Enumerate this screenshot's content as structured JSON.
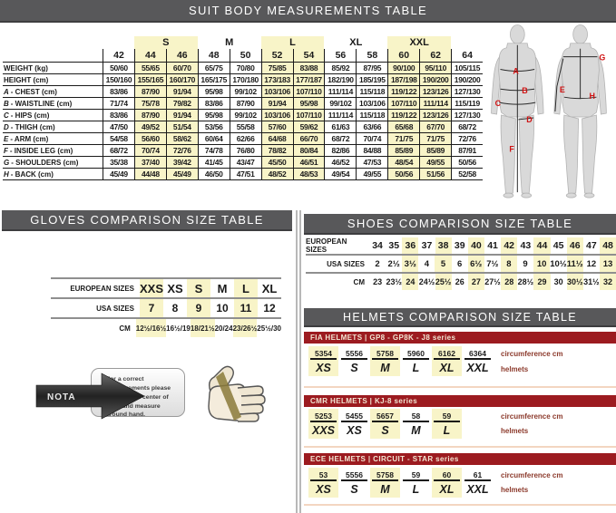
{
  "colors": {
    "header_gray": "#58585a",
    "series_red": "#9c1b20",
    "highlight_yellow": "#f8f4c8",
    "figure_letter_red": "#d01212"
  },
  "suit": {
    "title": "SUIT BODY MEASUREMENTS TABLE",
    "letter_bands": [
      {
        "label": "S",
        "highlight": true
      },
      {
        "label": "M",
        "highlight": false
      },
      {
        "label": "L",
        "highlight": true
      },
      {
        "label": "XL",
        "highlight": false
      },
      {
        "label": "XXL",
        "highlight": true
      }
    ],
    "sizes": [
      "42",
      "44",
      "46",
      "48",
      "50",
      "52",
      "54",
      "56",
      "58",
      "60",
      "62",
      "64"
    ],
    "highlight_cols": [
      1,
      2,
      5,
      6,
      9,
      10
    ],
    "rows": [
      {
        "prefix": "",
        "label": "WEIGHT (kg)",
        "values": [
          "50/60",
          "55/65",
          "60/70",
          "65/75",
          "70/80",
          "75/85",
          "83/88",
          "85/92",
          "87/95",
          "90/100",
          "95/110",
          "105/115"
        ]
      },
      {
        "prefix": "",
        "label": "HEIGHT (cm)",
        "values": [
          "150/160",
          "155/165",
          "160/170",
          "165/175",
          "170/180",
          "173/183",
          "177/187",
          "182/190",
          "185/195",
          "187/198",
          "190/200",
          "190/200"
        ]
      },
      {
        "prefix": "A",
        "label": "CHEST (cm)",
        "values": [
          "83/86",
          "87/90",
          "91/94",
          "95/98",
          "99/102",
          "103/106",
          "107/110",
          "111/114",
          "115/118",
          "119/122",
          "123/126",
          "127/130"
        ]
      },
      {
        "prefix": "B",
        "label": "WAISTLINE (cm)",
        "values": [
          "71/74",
          "75/78",
          "79/82",
          "83/86",
          "87/90",
          "91/94",
          "95/98",
          "99/102",
          "103/106",
          "107/110",
          "111/114",
          "115/119"
        ]
      },
      {
        "prefix": "C",
        "label": "HIPS (cm)",
        "values": [
          "83/86",
          "87/90",
          "91/94",
          "95/98",
          "99/102",
          "103/106",
          "107/110",
          "111/114",
          "115/118",
          "119/122",
          "123/126",
          "127/130"
        ]
      },
      {
        "prefix": "D",
        "label": "THIGH (cm)",
        "values": [
          "47/50",
          "49/52",
          "51/54",
          "53/56",
          "55/58",
          "57/60",
          "59/62",
          "61/63",
          "63/66",
          "65/68",
          "67/70",
          "68/72"
        ]
      },
      {
        "prefix": "E",
        "label": "ARM (cm)",
        "values": [
          "54/58",
          "56/60",
          "58/62",
          "60/64",
          "62/66",
          "64/68",
          "66/70",
          "68/72",
          "70/74",
          "71/75",
          "71/75",
          "72/76"
        ]
      },
      {
        "prefix": "F",
        "label": "INSIDE LEG (cm)",
        "values": [
          "68/72",
          "70/74",
          "72/76",
          "74/78",
          "76/80",
          "78/82",
          "80/84",
          "82/86",
          "84/88",
          "85/89",
          "85/89",
          "87/91"
        ]
      },
      {
        "prefix": "G",
        "label": "SHOULDERS (cm)",
        "values": [
          "35/38",
          "37/40",
          "39/42",
          "41/45",
          "43/47",
          "45/50",
          "46/51",
          "46/52",
          "47/53",
          "48/54",
          "49/55",
          "50/56"
        ]
      },
      {
        "prefix": "H",
        "label": "BACK (cm)",
        "values": [
          "45/49",
          "44/48",
          "45/49",
          "46/50",
          "47/51",
          "48/52",
          "48/53",
          "49/54",
          "49/55",
          "50/56",
          "51/56",
          "52/58"
        ]
      }
    ],
    "figure_letters": [
      "A",
      "B",
      "C",
      "D",
      "F",
      "G",
      "E",
      "H"
    ]
  },
  "gloves": {
    "title": "GLOVES COMPARISON SIZE TABLE",
    "rows": [
      {
        "label": "EUROPEAN SIZES",
        "values": [
          "XXS",
          "XS",
          "S",
          "M",
          "L",
          "XL"
        ]
      },
      {
        "label": "USA SIZES",
        "values": [
          "7",
          "8",
          "9",
          "10",
          "11",
          "12"
        ]
      },
      {
        "label": "CM",
        "values": [
          "12½/16½",
          "16½/19",
          "18/21½",
          "20/24",
          "23/26½",
          "25½/30"
        ]
      }
    ],
    "highlight_cols": [
      0,
      2,
      4
    ],
    "note_tag": "NOTA",
    "note_text": "For a correct measurements please hold tape in center of palm and measure around hand."
  },
  "shoes": {
    "title": "SHOES COMPARISON SIZE TABLE",
    "rows": [
      {
        "label": "EUROPEAN SIZES",
        "values": [
          "34",
          "35",
          "36",
          "37",
          "38",
          "39",
          "40",
          "41",
          "42",
          "43",
          "44",
          "45",
          "46",
          "47",
          "48"
        ]
      },
      {
        "label": "USA SIZES",
        "values": [
          "2",
          "2½",
          "3½",
          "4",
          "5",
          "6",
          "6½",
          "7½",
          "8",
          "9",
          "10",
          "10½",
          "11½",
          "12",
          "13"
        ]
      },
      {
        "label": "CM",
        "values": [
          "23",
          "23½",
          "24",
          "24½",
          "25½",
          "26",
          "27",
          "27½",
          "28",
          "28½",
          "29",
          "30",
          "30½",
          "31½",
          "32"
        ]
      }
    ],
    "highlight_cols": [
      2,
      4,
      6,
      8,
      10,
      12,
      14
    ]
  },
  "helmets": {
    "title": "HELMETS COMPARISON SIZE TABLE",
    "row_labels": {
      "circumference": "circumference cm",
      "sizes": "helmets"
    },
    "sections": [
      {
        "bar": "FIA HELMETS  |  GP8 - GP8K - J8 series",
        "groups": [
          {
            "nums": [
              "53",
              "54"
            ],
            "size": "XS",
            "highlight": true
          },
          {
            "nums": [
              "55",
              "56"
            ],
            "size": "S",
            "highlight": false
          },
          {
            "nums": [
              "57",
              "58"
            ],
            "size": "M",
            "highlight": true
          },
          {
            "nums": [
              "59",
              "60"
            ],
            "size": "L",
            "highlight": false
          },
          {
            "nums": [
              "61",
              "62"
            ],
            "size": "XL",
            "highlight": true
          },
          {
            "nums": [
              "63",
              "64"
            ],
            "size": "XXL",
            "highlight": false
          }
        ]
      },
      {
        "bar": "CMR HELMETS  |  KJ-8 series",
        "groups": [
          {
            "nums": [
              "52",
              "53"
            ],
            "size": "XXS",
            "highlight": true
          },
          {
            "nums": [
              "54",
              "55"
            ],
            "size": "XS",
            "highlight": false
          },
          {
            "nums": [
              "56",
              "57"
            ],
            "size": "S",
            "highlight": true
          },
          {
            "nums": [
              "58"
            ],
            "size": "M",
            "highlight": false
          },
          {
            "nums": [
              "59"
            ],
            "size": "L",
            "highlight": true
          }
        ]
      },
      {
        "bar": "ECE HELMETS  |  CIRCUIT - STAR series",
        "groups": [
          {
            "nums": [
              "53"
            ],
            "size": "XS",
            "highlight": true
          },
          {
            "nums": [
              "55",
              "56"
            ],
            "size": "S",
            "highlight": false
          },
          {
            "nums": [
              "57",
              "58"
            ],
            "size": "M",
            "highlight": true
          },
          {
            "nums": [
              "59"
            ],
            "size": "L",
            "highlight": false
          },
          {
            "nums": [
              "60"
            ],
            "size": "XL",
            "highlight": true
          },
          {
            "nums": [
              "61"
            ],
            "size": "XXL",
            "highlight": false
          }
        ]
      }
    ]
  }
}
